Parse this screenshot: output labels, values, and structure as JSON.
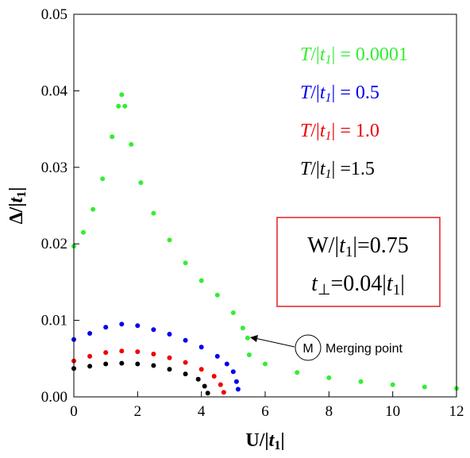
{
  "chart_data": {
    "type": "scatter",
    "title": "",
    "xlabel": "U/|t1|",
    "ylabel": "Δ/|t1|",
    "xlim": [
      0,
      12
    ],
    "ylim": [
      0,
      0.05
    ],
    "xticks": [
      "0",
      "2",
      "4",
      "6",
      "8",
      "10",
      "12"
    ],
    "yticks": [
      "0.00",
      "0.01",
      "0.02",
      "0.03",
      "0.04",
      "0.05"
    ],
    "grid": false,
    "legend_position": "top-right",
    "series": [
      {
        "name": "T/|t1| = 0.0001",
        "color": "#33ee33",
        "x": [
          0,
          0.3,
          0.6,
          0.9,
          1.2,
          1.4,
          1.5,
          1.6,
          1.8,
          2.1,
          2.5,
          3.0,
          3.5,
          4.0,
          4.5,
          5.0,
          5.3,
          5.45,
          5.5,
          6.0,
          7.0,
          8.0,
          9.0,
          10.0,
          11.0,
          12.0
        ],
        "values": [
          0.0197,
          0.0215,
          0.0245,
          0.0285,
          0.034,
          0.038,
          0.0395,
          0.038,
          0.033,
          0.028,
          0.024,
          0.0205,
          0.0175,
          0.0152,
          0.0133,
          0.011,
          0.009,
          0.0077,
          0.0055,
          0.0043,
          0.0032,
          0.0025,
          0.002,
          0.0016,
          0.0013,
          0.0011
        ]
      },
      {
        "name": "T/|t1| = 0.5",
        "color": "#0000ee",
        "x": [
          0,
          0.5,
          1.0,
          1.5,
          2.0,
          2.5,
          3.0,
          3.5,
          4.0,
          4.5,
          4.8,
          5.0,
          5.1,
          5.15
        ],
        "values": [
          0.0075,
          0.0083,
          0.0091,
          0.0095,
          0.0093,
          0.0088,
          0.0082,
          0.0074,
          0.0065,
          0.0053,
          0.0043,
          0.0033,
          0.002,
          0.001
        ]
      },
      {
        "name": "T/|t1| = 1.0",
        "color": "#ee0000",
        "x": [
          0,
          0.5,
          1.0,
          1.5,
          2.0,
          2.5,
          3.0,
          3.5,
          4.0,
          4.4,
          4.6,
          4.7
        ],
        "values": [
          0.0047,
          0.0053,
          0.0058,
          0.006,
          0.0059,
          0.0056,
          0.0051,
          0.0045,
          0.0036,
          0.0027,
          0.0016,
          0.0006
        ]
      },
      {
        "name": "T/|t1| =1.5",
        "color": "#000000",
        "x": [
          0,
          0.5,
          1.0,
          1.5,
          2.0,
          2.5,
          3.0,
          3.5,
          3.9,
          4.1,
          4.2
        ],
        "values": [
          0.0037,
          0.004,
          0.0043,
          0.0044,
          0.0043,
          0.0041,
          0.0036,
          0.003,
          0.0023,
          0.0014,
          0.0005
        ]
      }
    ],
    "annotations": {
      "box_line1": "W/|t1|=0.75",
      "box_line2": "t⊥=0.04|t1|",
      "merge_marker": "M",
      "merge_label": "Merging point",
      "merge_point": {
        "x": 5.45,
        "y": 0.0077
      }
    }
  }
}
